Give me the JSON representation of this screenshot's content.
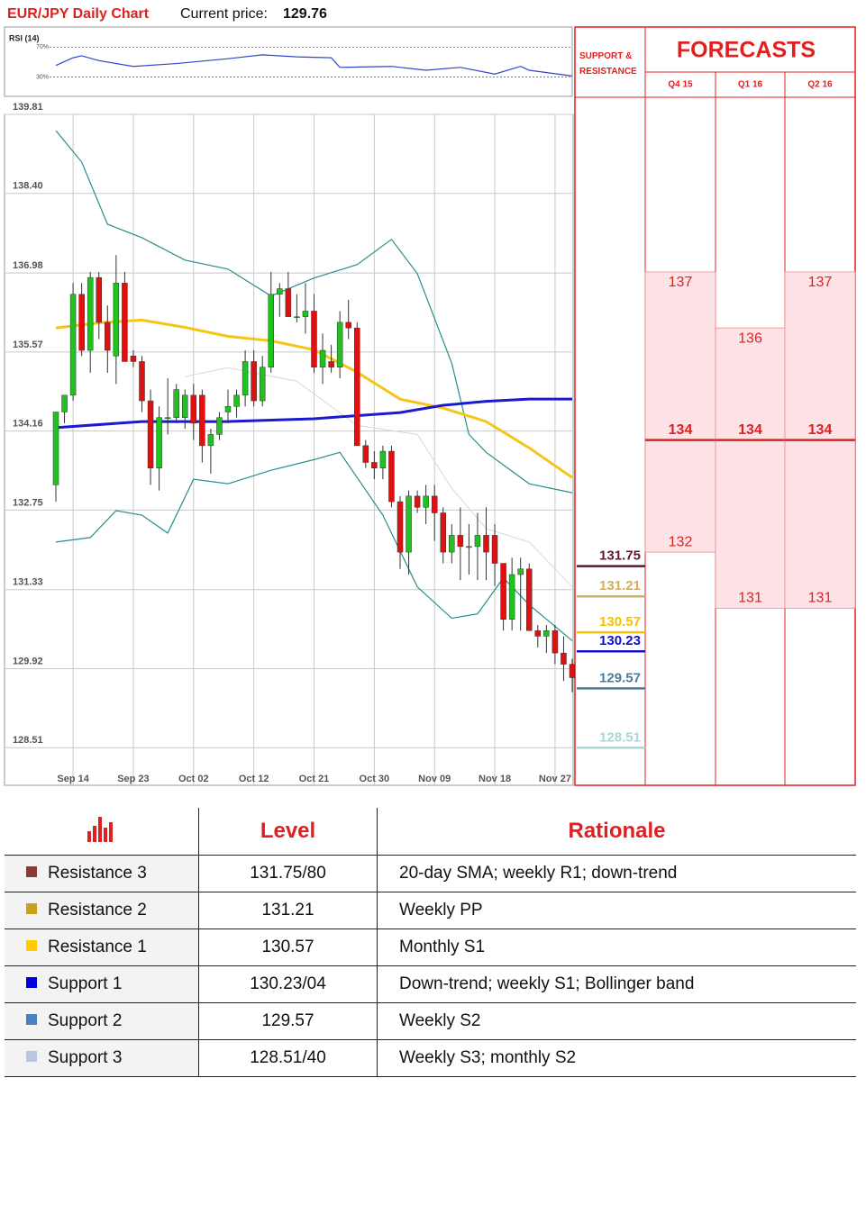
{
  "header": {
    "title": "EUR/JPY Daily Chart",
    "price_label": "Current price:",
    "price": 129.76
  },
  "chart_data": [
    {
      "type": "candlestick",
      "categories": [
        null,
        null,
        "Sep 14",
        null,
        null,
        null,
        null,
        null,
        null,
        "Sep 23",
        null,
        null,
        null,
        null,
        null,
        null,
        "Oct 02",
        null,
        null,
        null,
        null,
        null,
        null,
        "Oct 12",
        null,
        null,
        null,
        null,
        null,
        null,
        "Oct 21",
        null,
        null,
        null,
        null,
        null,
        null,
        "Oct 30",
        null,
        null,
        null,
        null,
        null,
        null,
        "Nov 09",
        null,
        null,
        null,
        null,
        null,
        null,
        "Nov 18",
        null,
        null,
        null,
        null,
        null,
        null,
        "Nov 27",
        null,
        null
      ],
      "open": [
        133.2,
        134.5,
        134.8,
        136.6,
        135.6,
        136.9,
        136.1,
        135.5,
        136.8,
        135.5,
        135.4,
        134.7,
        133.5,
        134.4,
        134.4,
        134.4,
        134.8,
        134.8,
        133.9,
        134.1,
        134.5,
        134.6,
        134.8,
        135.4,
        134.7,
        135.3,
        136.6,
        136.7,
        136.2,
        136.2,
        136.3,
        135.3,
        135.4,
        135.3,
        136.1,
        136.0,
        133.9,
        133.6,
        133.5,
        133.8,
        132.9,
        132.0,
        133.0,
        132.8,
        133.0,
        132.7,
        132.0,
        132.3,
        132.1,
        132.1,
        132.3,
        132.3,
        131.8,
        130.8,
        131.6,
        131.7,
        130.6,
        130.5,
        130.6,
        130.2,
        130.0
      ],
      "high": [
        134.5,
        134.8,
        136.8,
        136.8,
        137.0,
        137.0,
        136.4,
        137.3,
        137.0,
        135.6,
        135.5,
        134.9,
        134.6,
        135.1,
        135.0,
        134.9,
        135.0,
        134.9,
        134.2,
        134.5,
        134.9,
        134.9,
        135.6,
        135.6,
        135.5,
        137.0,
        136.8,
        137.0,
        136.6,
        136.8,
        136.6,
        135.9,
        135.7,
        136.3,
        136.5,
        136.1,
        134.0,
        133.8,
        133.9,
        133.9,
        133.0,
        133.1,
        133.1,
        133.2,
        133.2,
        132.8,
        132.5,
        132.8,
        132.5,
        132.7,
        132.8,
        132.5,
        131.8,
        131.9,
        131.9,
        131.8,
        130.7,
        130.7,
        130.7,
        130.5,
        130.1
      ],
      "low": [
        132.9,
        134.3,
        134.7,
        135.5,
        135.2,
        135.8,
        135.2,
        135.0,
        135.4,
        135.3,
        134.5,
        133.2,
        133.1,
        134.1,
        134.3,
        134.2,
        134.0,
        133.6,
        133.4,
        134.0,
        134.3,
        134.4,
        134.6,
        134.6,
        134.6,
        135.2,
        136.2,
        136.2,
        136.1,
        135.9,
        135.2,
        135.0,
        135.2,
        135.1,
        135.8,
        134.0,
        133.5,
        133.3,
        133.3,
        132.8,
        131.7,
        131.6,
        132.7,
        132.5,
        132.2,
        131.8,
        131.8,
        131.5,
        131.6,
        131.5,
        131.5,
        131.4,
        130.6,
        130.6,
        130.6,
        130.6,
        130.3,
        130.2,
        130.0,
        129.7,
        129.5
      ],
      "close": [
        134.5,
        134.8,
        136.6,
        135.6,
        136.9,
        136.1,
        135.6,
        136.8,
        135.4,
        135.4,
        134.7,
        133.5,
        134.4,
        134.4,
        134.9,
        134.8,
        134.3,
        133.9,
        134.1,
        134.4,
        134.6,
        134.8,
        135.4,
        134.7,
        135.3,
        136.6,
        136.7,
        136.2,
        136.2,
        136.3,
        135.3,
        135.6,
        135.3,
        136.1,
        136.0,
        133.9,
        133.6,
        133.5,
        133.8,
        132.9,
        132.0,
        133.0,
        132.8,
        133.0,
        132.7,
        132.0,
        132.3,
        132.1,
        132.1,
        132.3,
        132.0,
        131.8,
        130.8,
        131.6,
        131.7,
        130.6,
        130.5,
        130.6,
        130.2,
        130.0,
        129.76
      ],
      "up_color": "#1fc21f",
      "down_color": "#e01010",
      "overlays": [
        {
          "color": "#d8d8d8",
          "x": [
            15,
            20,
            28,
            35,
            42,
            46,
            50,
            55,
            60
          ],
          "values": [
            135.13,
            135.29,
            135.05,
            134.26,
            134.1,
            133.14,
            132.42,
            132.18,
            131.38
          ]
        },
        {
          "color": "#2a8c8c",
          "x": [
            0,
            3,
            6,
            10,
            15,
            20,
            25,
            30,
            35,
            39,
            42,
            46,
            48,
            50,
            55,
            60
          ],
          "values": [
            139.52,
            138.96,
            137.85,
            137.61,
            137.21,
            137.05,
            136.57,
            136.89,
            137.13,
            137.58,
            136.97,
            135.37,
            134.1,
            133.78,
            133.22,
            133.06
          ]
        },
        {
          "color": "#2a8c8c",
          "x": [
            0,
            4,
            7,
            10,
            13,
            16,
            20,
            25,
            30,
            33,
            38,
            42,
            46,
            49,
            52,
            55,
            60
          ],
          "values": [
            132.18,
            132.26,
            132.74,
            132.66,
            132.34,
            133.3,
            133.22,
            133.46,
            133.65,
            133.78,
            132.66,
            131.38,
            130.82,
            130.9,
            131.54,
            131.06,
            130.42
          ]
        },
        {
          "color": "#f5c518",
          "x": [
            0,
            5,
            10,
            15,
            20,
            25,
            30,
            35,
            40,
            45,
            50,
            55,
            60
          ],
          "values": [
            136.0,
            136.09,
            136.14,
            136.01,
            135.85,
            135.77,
            135.61,
            135.21,
            134.73,
            134.57,
            134.33,
            133.86,
            133.33
          ]
        },
        {
          "color": "#1a1ad0",
          "x": [
            0,
            10,
            20,
            30,
            40,
            45,
            50,
            55,
            60
          ],
          "values": [
            134.22,
            134.33,
            134.33,
            134.38,
            134.49,
            134.62,
            134.69,
            134.73,
            134.73
          ]
        }
      ],
      "ylim": [
        127.84,
        139.81
      ],
      "yticks": [
        139.81,
        {
          "value": 138.4,
          "label": "138.40"
        },
        136.98,
        135.57,
        134.16,
        132.75,
        131.33,
        129.92,
        128.51
      ],
      "grid": true
    },
    {
      "type": "line",
      "title": "RSI (14)",
      "x": [
        0,
        2,
        3,
        5,
        9,
        14,
        20,
        24,
        28,
        32,
        33,
        39,
        43,
        47,
        51,
        54,
        55,
        60
      ],
      "values": [
        45.5,
        55.8,
        58.4,
        51.9,
        44.2,
        48,
        54.5,
        59.7,
        57,
        55.8,
        42.9,
        44.2,
        39,
        42.9,
        33.9,
        44.2,
        39,
        31.3
      ],
      "color": "#3344cc",
      "xlim": [
        0,
        60
      ],
      "ylim": [
        4,
        97
      ],
      "yticks": [
        {
          "value": 30,
          "label": "30%"
        },
        {
          "value": 70,
          "label": "70%"
        }
      ]
    }
  ],
  "support_resistance": {
    "title": "SUPPORT & RESISTANCE",
    "levels": [
      {
        "value": 131.75,
        "color": "#5c1a33"
      },
      {
        "value": 131.21,
        "color": "#d2ad62"
      },
      {
        "value": 130.57,
        "color": "#f2c200"
      },
      {
        "value": 130.23,
        "color": "#1010c8"
      },
      {
        "value": 129.57,
        "color": "#4a7c98"
      },
      {
        "value": 128.51,
        "color": "#a8d6d6"
      }
    ]
  },
  "forecasts": {
    "title": "FORECASTS",
    "periods": [
      {
        "label": "Q4 15",
        "high": 137,
        "mid": 134,
        "low": 132
      },
      {
        "label": "Q1 16",
        "high": 136,
        "mid": 134,
        "low": 131
      },
      {
        "label": "Q2 16",
        "high": 137,
        "mid": 134,
        "low": 131
      }
    ]
  },
  "table": {
    "header": [
      "Level",
      "Rationale"
    ],
    "rows": [
      {
        "name": "Resistance 3",
        "color": "#8b3a3a",
        "level": "131.75/80",
        "rationale": "20-day SMA; weekly R1; down-trend"
      },
      {
        "name": "Resistance 2",
        "color": "#c9a21c",
        "level": "131.21",
        "rationale": "Weekly PP"
      },
      {
        "name": "Resistance 1",
        "color": "#ffcc00",
        "level": "130.57",
        "rationale": "Monthly S1"
      },
      {
        "name": "Support 1",
        "color": "#0000dd",
        "level": "130.23/04",
        "rationale": "Down-trend; weekly S1; Bollinger band"
      },
      {
        "name": "Support 2",
        "color": "#4a7fc0",
        "level": "129.57",
        "rationale": "Weekly S2"
      },
      {
        "name": "Support 3",
        "color": "#b8c8e0",
        "level": "128.51/40",
        "rationale": "Weekly S3; monthly S2"
      }
    ]
  }
}
